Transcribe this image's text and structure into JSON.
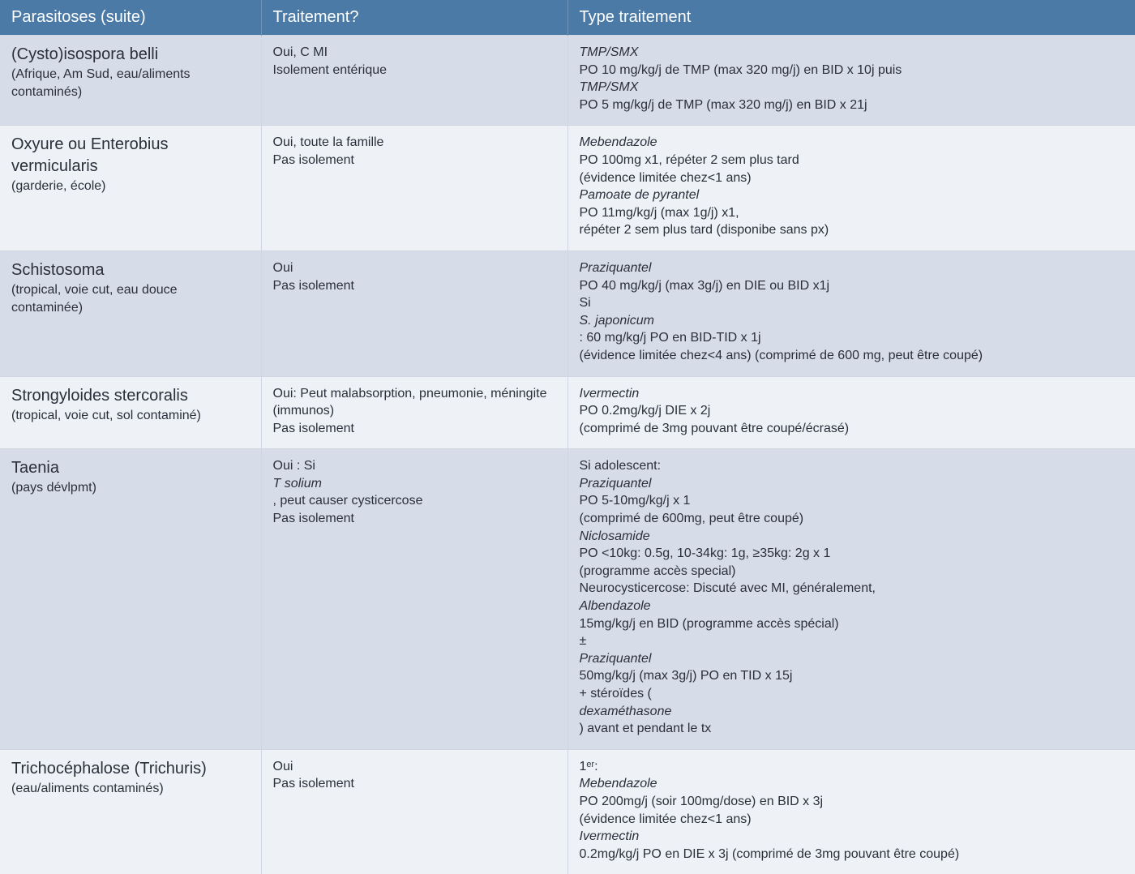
{
  "colors": {
    "header_bg": "#4b7aa6",
    "row_even_bg": "#d6dde8",
    "row_odd_bg": "#eef1f6",
    "text": "#2a2f3a",
    "border": "#cfd6e1"
  },
  "columns": {
    "col1": {
      "header": "Parasitoses (suite)",
      "width_pct": 23
    },
    "col2": {
      "header": "Traitement?",
      "width_pct": 27
    },
    "col3": {
      "header": "Type traitement",
      "width_pct": 50
    }
  },
  "rows": [
    {
      "name_title": "(Cysto)isospora belli",
      "name_sub": "(Afrique, Am Sud, eau/aliments contaminés)",
      "treat_q": [
        "Oui, C MI",
        "Isolement entérique"
      ],
      "treat_type": [
        {
          "parts": [
            {
              "t": "TMP/SMX",
              "i": true
            },
            {
              "t": " PO 10 mg/kg/j de TMP (max 320 mg/j) en BID x 10j puis"
            }
          ]
        },
        {
          "parts": [
            {
              "t": "TMP/SMX",
              "i": true
            },
            {
              "t": " PO 5 mg/kg/j de TMP (max 320 mg/j) en BID x 21j"
            }
          ]
        }
      ]
    },
    {
      "name_title": "Oxyure ou Enterobius vermicularis",
      "name_sub": "(garderie, école)",
      "treat_q": [
        "Oui, toute la famille",
        "Pas isolement"
      ],
      "treat_type": [
        {
          "parts": [
            {
              "t": "Mebendazole",
              "i": true
            },
            {
              "t": " PO 100mg x1, répéter 2 sem plus tard"
            }
          ]
        },
        {
          "parts": [
            {
              "t": "(évidence limitée chez<1 ans)"
            }
          ]
        },
        {
          "parts": [
            {
              "t": "Pamoate de pyrantel",
              "i": true
            },
            {
              "t": " PO 11mg/kg/j (max 1g/j) x1,"
            }
          ]
        },
        {
          "parts": [
            {
              "t": "répéter 2 sem plus tard (disponibe sans px)"
            }
          ]
        }
      ]
    },
    {
      "name_title": "Schistosoma",
      "name_sub": "(tropical, voie cut, eau douce contaminée)",
      "treat_q": [
        "Oui",
        "Pas isolement"
      ],
      "treat_type": [
        {
          "parts": [
            {
              "t": "Praziquantel",
              "i": true
            },
            {
              "t": " PO 40 mg/kg/j (max 3g/j) en DIE ou BID x1j"
            }
          ]
        },
        {
          "parts": [
            {
              "t": "Si "
            },
            {
              "t": "S. japonicum",
              "i": true
            },
            {
              "t": ": 60 mg/kg/j PO en BID-TID x 1j"
            }
          ]
        },
        {
          "parts": [
            {
              "t": "(évidence limitée chez<4 ans) (comprimé de 600 mg, peut être coupé)"
            }
          ]
        }
      ]
    },
    {
      "name_title": "Strongyloides stercoralis",
      "name_sub": "(tropical, voie cut,  sol contaminé)",
      "treat_q": [
        "Oui: Peut malabsorption, pneumonie, méningite (immunos)",
        "Pas isolement"
      ],
      "treat_type": [
        {
          "parts": [
            {
              "t": "Ivermectin",
              "i": true
            },
            {
              "t": " PO 0.2mg/kg/j  DIE x 2j"
            }
          ]
        },
        {
          "parts": [
            {
              "t": "(comprimé de 3mg pouvant être coupé/écrasé)"
            }
          ]
        }
      ]
    },
    {
      "name_title": "Taenia",
      "name_sub": "(pays dévlpmt)",
      "treat_q": [
        "Oui : Si T solium, peut causer cysticercose",
        "Pas isolement"
      ],
      "treat_q_italic": {
        "line": 0,
        "text": "T solium"
      },
      "treat_type": [
        {
          "parts": [
            {
              "t": "Si adolescent: "
            },
            {
              "t": "Praziquantel",
              "i": true
            },
            {
              "t": " PO 5-10mg/kg/j x 1"
            }
          ]
        },
        {
          "parts": [
            {
              "t": "(comprimé de 600mg, peut être coupé)"
            }
          ]
        },
        {
          "parts": [
            {
              "t": "Niclosamide",
              "i": true
            },
            {
              "t": " PO  <10kg: 0.5g,  10-34kg: 1g,  ≥35kg: 2g  x 1"
            }
          ]
        },
        {
          "parts": [
            {
              "t": "(programme accès special)"
            }
          ]
        },
        {
          "parts": [
            {
              "t": "Neurocysticercose: Discuté avec MI, généralement,"
            }
          ]
        },
        {
          "parts": [
            {
              "t": "Albendazole",
              "i": true
            },
            {
              "t": " 15mg/kg/j en BID (programme accès spécial)"
            }
          ]
        },
        {
          "parts": [
            {
              "t": "±"
            },
            {
              "t": "Praziquantel",
              "i": true
            },
            {
              "t": " 50mg/kg/j (max 3g/j) PO en TID x 15j"
            }
          ]
        },
        {
          "parts": [
            {
              "t": "+ stéroïdes ("
            },
            {
              "t": "dexaméthasone",
              "i": true
            },
            {
              "t": ") avant et pendant le tx"
            }
          ]
        }
      ]
    },
    {
      "name_title": "Trichocéphalose (Trichuris)",
      "name_sub": "(eau/aliments contaminés)",
      "treat_q": [
        "Oui",
        "Pas isolement"
      ],
      "treat_type": [
        {
          "parts": [
            {
              "t": "1ᵉʳ: "
            },
            {
              "t": "Mebendazole",
              "i": true
            },
            {
              "t": " PO 200mg/j (soir 100mg/dose) en BID x 3j"
            }
          ]
        },
        {
          "parts": [
            {
              "t": "(évidence limitée chez<1 ans)"
            }
          ]
        },
        {
          "parts": [
            {
              "t": "Ivermectin",
              "i": true
            },
            {
              "t": " 0.2mg/kg/j PO en DIE x 3j (comprimé de 3mg pouvant être coupé)"
            }
          ]
        }
      ]
    }
  ]
}
